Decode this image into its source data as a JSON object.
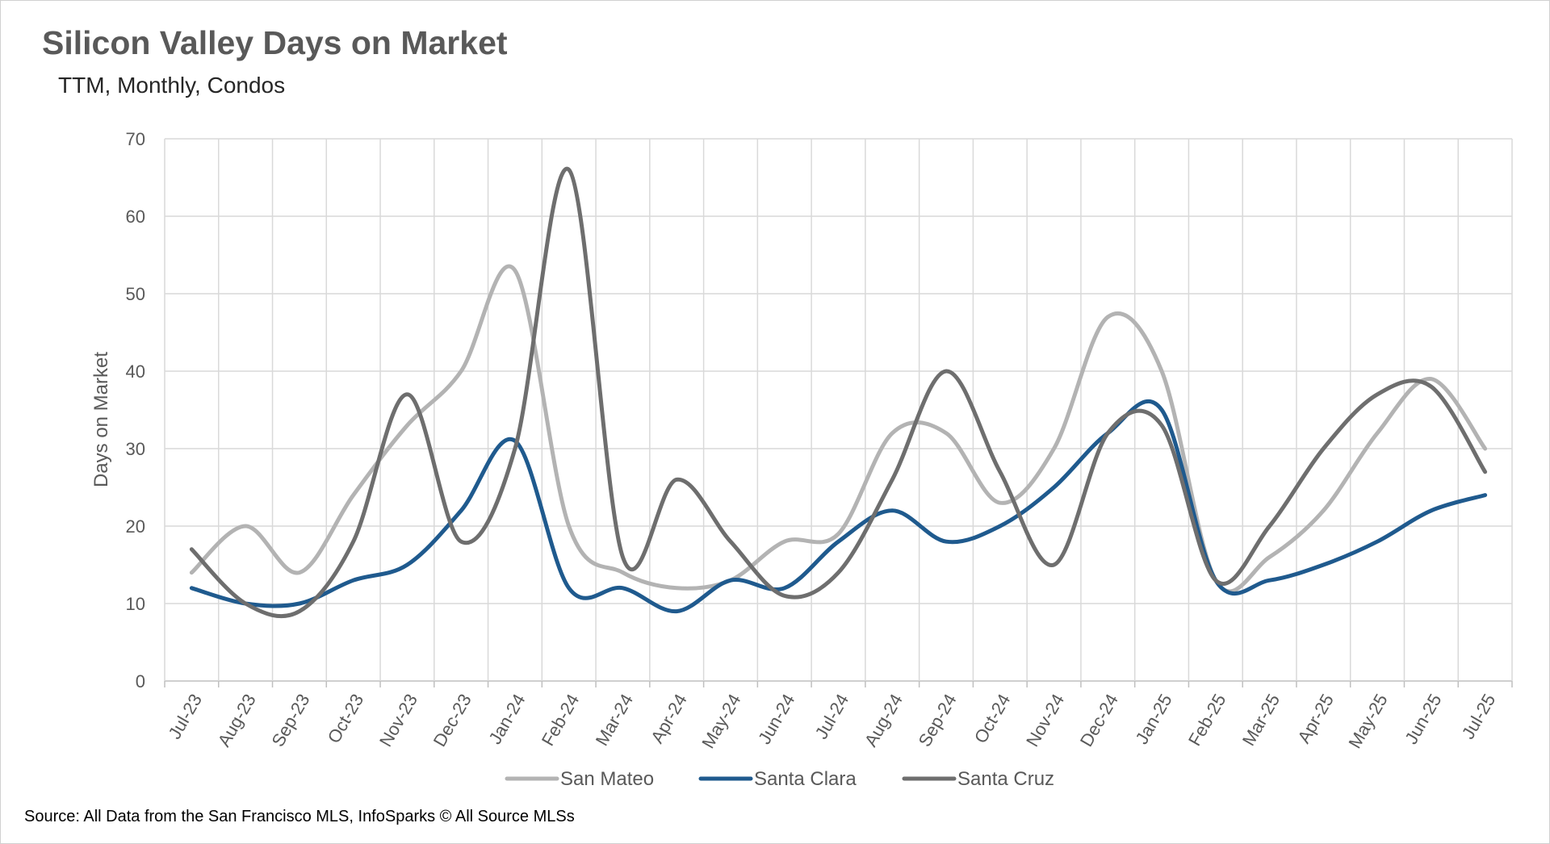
{
  "header": {
    "title": "Silicon Valley Days on Market",
    "subtitle": "TTM, Monthly, Condos"
  },
  "footer": {
    "source": "Source: All Data from the San Francisco MLS, InfoSparks © All Source MLSs"
  },
  "colors": {
    "San Mateo": "#b3b3b3",
    "Santa Clara": "#1f5a8e",
    "Santa Cruz": "#6e6e6e",
    "grid": "#d9d9d9",
    "axis": "#bfbfbf"
  },
  "chart_data": {
    "type": "line",
    "title": "Silicon Valley Days on Market",
    "subtitle": "TTM, Monthly, Condos",
    "xlabel": "",
    "ylabel": "Days on Market",
    "ylim": [
      0,
      70
    ],
    "yticks": [
      0,
      10,
      20,
      30,
      40,
      50,
      60,
      70
    ],
    "grid": true,
    "legend": "bottom",
    "smooth": true,
    "categories": [
      "Jul-23",
      "Aug-23",
      "Sep-23",
      "Oct-23",
      "Nov-23",
      "Dec-23",
      "Jan-24",
      "Feb-24",
      "Mar-24",
      "Apr-24",
      "May-24",
      "Jun-24",
      "Jul-24",
      "Aug-24",
      "Sep-24",
      "Oct-24",
      "Nov-24",
      "Dec-24",
      "Jan-25",
      "Feb-25",
      "Mar-25",
      "Apr-25",
      "May-25",
      "Jun-25",
      "Jul-25"
    ],
    "series": [
      {
        "name": "San Mateo",
        "values": [
          14,
          20,
          14,
          24,
          33,
          40,
          53,
          20,
          14,
          12,
          13,
          18,
          19,
          32,
          32,
          23,
          30,
          47,
          40,
          13,
          16,
          22,
          32,
          39,
          30
        ]
      },
      {
        "name": "Santa Clara",
        "values": [
          12,
          10,
          10,
          13,
          15,
          22,
          31,
          12,
          12,
          9,
          13,
          12,
          18,
          22,
          18,
          20,
          25,
          32,
          35,
          13,
          13,
          15,
          18,
          22,
          24
        ]
      },
      {
        "name": "Santa Cruz",
        "values": [
          17,
          10,
          9,
          18,
          37,
          18,
          30,
          66,
          16,
          26,
          18,
          11,
          14,
          26,
          40,
          27,
          15,
          32,
          33,
          13,
          20,
          30,
          37,
          38,
          27
        ]
      }
    ]
  }
}
